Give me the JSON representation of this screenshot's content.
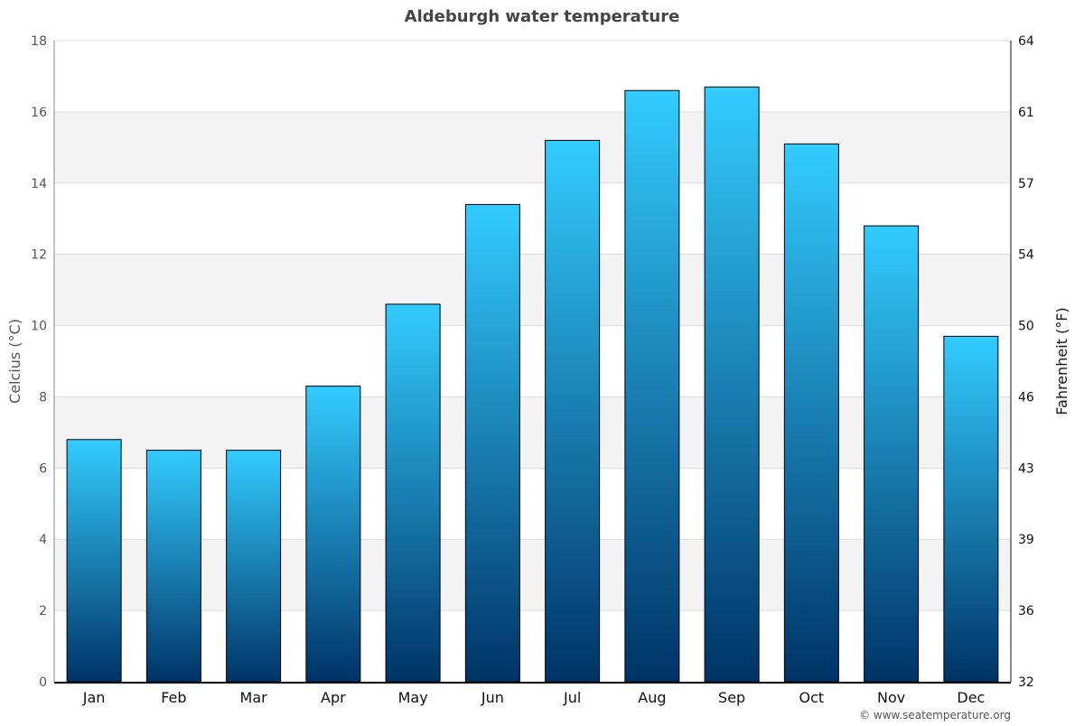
{
  "chart_data": {
    "type": "bar",
    "title": "Aldeburgh water temperature",
    "ylabel": "Celcius (°C)",
    "y2label": "Fahrenheit (°F)",
    "categories": [
      "Jan",
      "Feb",
      "Mar",
      "Apr",
      "May",
      "Jun",
      "Jul",
      "Aug",
      "Sep",
      "Oct",
      "Nov",
      "Dec"
    ],
    "values": [
      6.8,
      6.5,
      6.5,
      8.3,
      10.6,
      13.4,
      15.2,
      16.6,
      16.7,
      15.1,
      12.8,
      9.7
    ],
    "ylim": [
      0,
      18
    ],
    "yticks": [
      0,
      2,
      4,
      6,
      8,
      10,
      12,
      14,
      16,
      18
    ],
    "y2ticks": [
      "32",
      "36",
      "39",
      "43",
      "46",
      "50",
      "54",
      "57",
      "61",
      "64"
    ],
    "grid": true,
    "colors": {
      "bar_top": "#33ccff",
      "bar_bottom": "#003366",
      "band": "#f3f3f3"
    }
  },
  "footer": {
    "credit": "© www.seatemperature.org"
  }
}
